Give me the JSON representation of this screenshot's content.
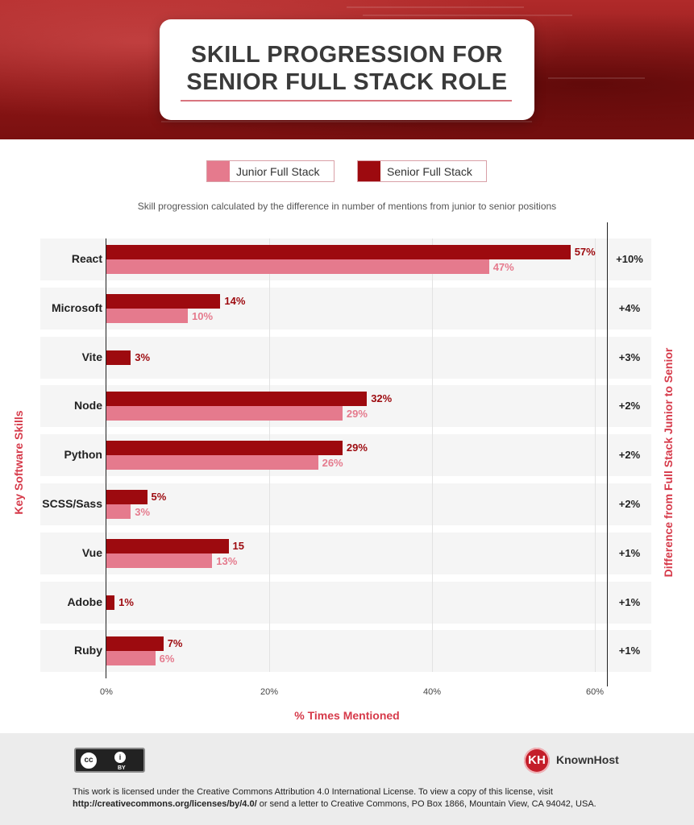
{
  "title": {
    "line1": "SKILL PROGRESSION FOR",
    "line2": "SENIOR FULL STACK ROLE"
  },
  "legend": {
    "junior": "Junior Full Stack",
    "senior": "Senior Full Stack"
  },
  "subtitle": "Skill progression calculated by the difference in number of mentions from junior to senior positions",
  "colors": {
    "junior": "#e57a8d",
    "senior": "#9d0a0f",
    "accent": "#d63a4a"
  },
  "chart_data": {
    "type": "bar",
    "orientation": "horizontal",
    "categories": [
      "React",
      "Microsoft",
      "Vite",
      "Node",
      "Python",
      "SCSS/Sass",
      "Vue",
      "Adobe",
      "Ruby"
    ],
    "series": [
      {
        "name": "Senior Full Stack",
        "values": [
          57,
          14,
          3,
          32,
          29,
          5,
          15,
          1,
          7
        ],
        "labels": [
          "57%",
          "14%",
          "3%",
          "32%",
          "29%",
          "5%",
          "15",
          "1%",
          "7%"
        ]
      },
      {
        "name": "Junior Full Stack",
        "values": [
          47,
          10,
          null,
          29,
          26,
          3,
          13,
          null,
          6
        ],
        "labels": [
          "47%",
          "10%",
          "",
          "29%",
          "26%",
          "3%",
          "13%",
          "",
          "6%"
        ]
      }
    ],
    "difference": [
      "+10%",
      "+4%",
      "+3%",
      "+2%",
      "+2%",
      "+2%",
      "+1%",
      "+1%",
      "+1%"
    ],
    "xticks": [
      "0%",
      "20%",
      "40%",
      "60%"
    ],
    "xlabel": "% Times Mentioned",
    "ylabel": "Key Software Skills",
    "ylabel_right": "Difference from Full Stack Junior to Senior",
    "xlim": [
      0,
      60
    ],
    "grid": true,
    "legend_position": "top"
  },
  "footer": {
    "cc_by": "BY",
    "cc_mark": "cc",
    "cc_person": "i",
    "brand": "KnownHost",
    "brand_mark": "KH",
    "license_text": "This work is licensed under the Creative Commons Attribution 4.0 International License. To view a copy of this license, visit ",
    "license_url": "http://creativecommons.org/licenses/by/4.0/",
    "license_tail": " or send a letter to Creative Commons, PO Box 1866, Mountain View, CA 94042, USA."
  }
}
